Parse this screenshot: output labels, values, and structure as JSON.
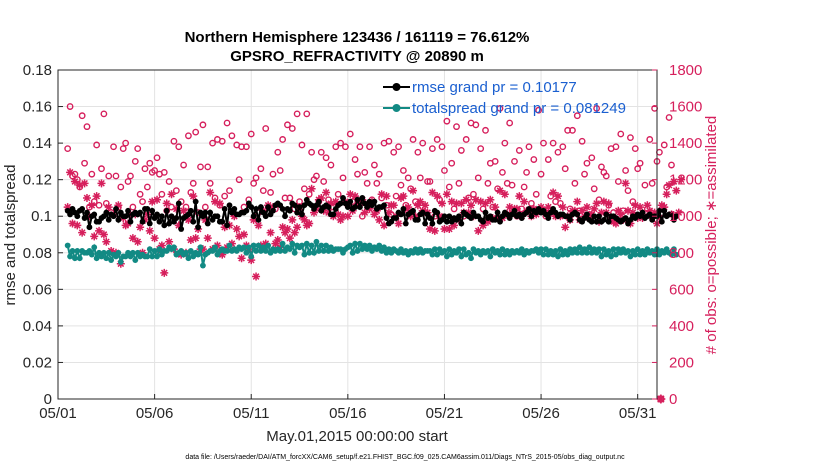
{
  "chart_data": {
    "type": "line",
    "title_line1": "Northern Hemisphere 123436 / 161119 = 76.612%",
    "title_line2": "GPSRO_REFRACTIVITY @ 20890 m",
    "xlabel": "May.01,2015 00:00:00 start",
    "ylabel_left": "rmse and totalspread",
    "ylabel_right": "# of obs: o=possible; ∗=assimilated",
    "footer": "data file: /Users/raeder/DAI/ATM_forcXX/CAM6_setup/f.e21.FHIST_BGC.f09_025.CAM6assim.011/Diags_NTrS_2015-05/obs_diag_output.nc",
    "x_range_days": [
      0,
      31
    ],
    "x_ticks": [
      0,
      5,
      10,
      15,
      20,
      25,
      30
    ],
    "x_tick_labels": [
      "05/01",
      "05/06",
      "05/11",
      "05/16",
      "05/21",
      "05/26",
      "05/31"
    ],
    "ylim_left": [
      0,
      0.18
    ],
    "y_ticks_left": [
      0,
      0.02,
      0.04,
      0.06,
      0.08,
      0.1,
      0.12,
      0.14,
      0.16,
      0.18
    ],
    "y_tick_labels_left": [
      "0",
      "0.02",
      "0.04",
      "0.06",
      "0.08",
      "0.1",
      "0.12",
      "0.14",
      "0.16",
      "0.18"
    ],
    "ylim_right": [
      0,
      1800
    ],
    "y_ticks_right": [
      0,
      200,
      400,
      600,
      800,
      1000,
      1200,
      1400,
      1600,
      1800
    ],
    "y_tick_labels_right": [
      "0",
      "200",
      "400",
      "600",
      "800",
      "1000",
      "1200",
      "1400",
      "1600",
      "1800"
    ],
    "grid": true,
    "legend_position": "top-right",
    "samples_per_day": 8,
    "series": [
      {
        "name": "rmse grand pr = 0.10177",
        "axis": "left",
        "color": "#000000",
        "marker": "dot",
        "values": [
          0.103,
          0.101,
          0.104,
          0.102,
          0.1,
          0.103,
          0.104,
          0.099,
          0.102,
          0.094,
          0.1,
          0.101,
          0.097,
          0.097,
          0.099,
          0.1,
          0.102,
          0.098,
          0.101,
          0.1,
          0.104,
          0.098,
          0.102,
          0.1,
          0.1,
          0.103,
          0.097,
          0.101,
          0.102,
          0.101,
          0.102,
          0.097,
          0.104,
          0.104,
          0.096,
          0.103,
          0.099,
          0.101,
          0.097,
          0.1,
          0.095,
          0.103,
          0.096,
          0.1,
          0.097,
          0.099,
          0.107,
          0.093,
          0.099,
          0.1,
          0.101,
          0.103,
          0.097,
          0.108,
          0.094,
          0.102,
          0.1,
          0.102,
          0.096,
          0.102,
          0.098,
          0.1,
          0.1,
          0.097,
          0.097,
          0.104,
          0.095,
          0.106,
          0.102,
          0.104,
          0.101,
          0.101,
          0.102,
          0.102,
          0.103,
          0.107,
          0.105,
          0.1,
          0.104,
          0.098,
          0.105,
          0.102,
          0.1,
          0.105,
          0.101,
          0.103,
          0.106,
          0.107,
          0.106,
          0.104,
          0.1,
          0.104,
          0.103,
          0.107,
          0.106,
          0.102,
          0.105,
          0.101,
          0.106,
          0.109,
          0.107,
          0.106,
          0.104,
          0.106,
          0.108,
          0.103,
          0.105,
          0.106,
          0.105,
          0.101,
          0.101,
          0.104,
          0.106,
          0.107,
          0.11,
          0.107,
          0.105,
          0.108,
          0.104,
          0.105,
          0.109,
          0.105,
          0.11,
          0.107,
          0.105,
          0.108,
          0.106,
          0.108,
          0.104,
          0.105,
          0.105,
          0.106,
          0.099,
          0.096,
          0.097,
          0.099,
          0.099,
          0.102,
          0.101,
          0.104,
          0.096,
          0.101,
          0.102,
          0.103,
          0.098,
          0.098,
          0.101,
          0.102,
          0.096,
          0.101,
          0.099,
          0.096,
          0.103,
          0.102,
          0.097,
          0.098,
          0.1,
          0.097,
          0.1,
          0.097,
          0.099,
          0.098,
          0.1,
          0.096,
          0.102,
          0.101,
          0.1,
          0.099,
          0.102,
          0.1,
          0.1,
          0.098,
          0.097,
          0.102,
          0.099,
          0.1,
          0.098,
          0.098,
          0.102,
          0.097,
          0.1,
          0.102,
          0.101,
          0.099,
          0.101,
          0.103,
          0.1,
          0.101,
          0.099,
          0.101,
          0.102,
          0.104,
          0.1,
          0.103,
          0.102,
          0.104,
          0.102,
          0.103,
          0.101,
          0.099,
          0.102,
          0.104,
          0.102,
          0.1,
          0.101,
          0.101,
          0.1,
          0.1,
          0.098,
          0.101,
          0.102,
          0.101,
          0.098,
          0.097,
          0.099,
          0.101,
          0.098,
          0.097,
          0.1,
          0.097,
          0.1,
          0.097,
          0.098,
          0.101,
          0.097,
          0.1,
          0.1,
          0.099,
          0.098,
          0.097,
          0.098,
          0.099,
          0.096,
          0.098,
          0.1,
          0.099,
          0.101,
          0.1,
          0.102,
          0.099,
          0.1,
          0.101,
          0.098,
          0.1,
          0.1,
          0.103,
          0.097,
          0.103,
          0.1,
          0.101,
          0.101,
          0.098,
          0.1
        ]
      },
      {
        "name": "totalspread grand pr = 0.081249",
        "axis": "left",
        "color": "#128a84",
        "marker": "dot",
        "values": [
          0.084,
          0.078,
          0.081,
          0.077,
          0.081,
          0.077,
          0.081,
          0.08,
          0.08,
          0.081,
          0.079,
          0.083,
          0.077,
          0.08,
          0.078,
          0.08,
          0.077,
          0.08,
          0.076,
          0.079,
          0.078,
          0.08,
          0.075,
          0.078,
          0.078,
          0.08,
          0.078,
          0.08,
          0.076,
          0.08,
          0.078,
          0.079,
          0.078,
          0.078,
          0.082,
          0.078,
          0.081,
          0.078,
          0.082,
          0.079,
          0.081,
          0.081,
          0.083,
          0.082,
          0.083,
          0.079,
          0.08,
          0.081,
          0.079,
          0.08,
          0.077,
          0.081,
          0.078,
          0.08,
          0.079,
          0.083,
          0.073,
          0.079,
          0.08,
          0.081,
          0.081,
          0.083,
          0.079,
          0.081,
          0.082,
          0.081,
          0.081,
          0.084,
          0.081,
          0.082,
          0.081,
          0.083,
          0.082,
          0.083,
          0.08,
          0.083,
          0.078,
          0.084,
          0.081,
          0.084,
          0.081,
          0.083,
          0.081,
          0.084,
          0.08,
          0.082,
          0.081,
          0.082,
          0.081,
          0.085,
          0.081,
          0.083,
          0.082,
          0.085,
          0.08,
          0.084,
          0.083,
          0.084,
          0.079,
          0.085,
          0.08,
          0.084,
          0.08,
          0.086,
          0.081,
          0.084,
          0.081,
          0.084,
          0.081,
          0.083,
          0.081,
          0.082,
          0.082,
          0.082,
          0.08,
          0.082,
          0.083,
          0.084,
          0.08,
          0.085,
          0.081,
          0.085,
          0.082,
          0.084,
          0.082,
          0.084,
          0.081,
          0.083,
          0.082,
          0.084,
          0.081,
          0.083,
          0.08,
          0.082,
          0.08,
          0.082,
          0.081,
          0.08,
          0.082,
          0.08,
          0.081,
          0.079,
          0.081,
          0.08,
          0.082,
          0.08,
          0.082,
          0.08,
          0.081,
          0.081,
          0.081,
          0.079,
          0.082,
          0.079,
          0.082,
          0.08,
          0.081,
          0.078,
          0.082,
          0.079,
          0.081,
          0.08,
          0.082,
          0.078,
          0.082,
          0.079,
          0.08,
          0.077,
          0.082,
          0.08,
          0.081,
          0.079,
          0.081,
          0.08,
          0.081,
          0.078,
          0.082,
          0.08,
          0.081,
          0.079,
          0.082,
          0.079,
          0.081,
          0.079,
          0.081,
          0.08,
          0.081,
          0.08,
          0.082,
          0.079,
          0.081,
          0.08,
          0.081,
          0.081,
          0.082,
          0.08,
          0.082,
          0.079,
          0.082,
          0.079,
          0.081,
          0.079,
          0.081,
          0.078,
          0.082,
          0.079,
          0.081,
          0.079,
          0.082,
          0.08,
          0.082,
          0.08,
          0.083,
          0.08,
          0.082,
          0.08,
          0.083,
          0.08,
          0.082,
          0.08,
          0.082,
          0.078,
          0.082,
          0.079,
          0.081,
          0.078,
          0.082,
          0.079,
          0.082,
          0.08,
          0.082,
          0.08,
          0.081,
          0.078,
          0.081,
          0.079,
          0.082,
          0.079,
          0.081,
          0.079,
          0.082,
          0.08,
          0.081,
          0.079,
          0.082,
          0.079,
          0.081,
          0.08,
          0.082,
          0.08,
          0.079,
          0.082,
          0.079
        ]
      },
      {
        "name": "possible",
        "axis": "right",
        "color": "#d61f5c",
        "marker": "circle",
        "values": [
          1370,
          1600,
          1220,
          1230,
          1200,
          1160,
          1550,
          1290,
          1490,
          1050,
          1230,
          1080,
          1390,
          1060,
          1260,
          1560,
          1070,
          1220,
          1020,
          1380,
          1220,
          1050,
          1160,
          1370,
          1400,
          1190,
          1220,
          1050,
          1300,
          1370,
          1120,
          1080,
          1260,
          1160,
          1290,
          1240,
          1250,
          1320,
          1230,
          1120,
          1240,
          1030,
          1190,
          1050,
          1410,
          1140,
          1380,
          1080,
          1280,
          1050,
          1440,
          1130,
          1180,
          1460,
          1020,
          1270,
          1500,
          1050,
          1270,
          1180,
          1400,
          1100,
          1420,
          1060,
          1410,
          1110,
          1510,
          1140,
          1440,
          1010,
          1390,
          1200,
          1380,
          1050,
          1380,
          1090,
          1450,
          1180,
          1210,
          1020,
          1260,
          1140,
          1480,
          1050,
          1130,
          1230,
          1040,
          1350,
          1250,
          1420,
          1100,
          1500,
          1100,
          1480,
          1040,
          1560,
          1080,
          1390,
          1150,
          1560,
          1120,
          1350,
          1200,
          1220,
          1080,
          1350,
          1190,
          1320,
          1090,
          1280,
          1050,
          1380,
          1120,
          1400,
          1210,
          1380,
          1060,
          1450,
          1080,
          1310,
          1230,
          1380,
          1000,
          1240,
          1180,
          1380,
          1090,
          1280,
          1180,
          1230,
          1100,
          1400,
          1060,
          1410,
          1010,
          1350,
          1110,
          1380,
          1170,
          1250,
          1060,
          1210,
          1150,
          1420,
          1080,
          1350,
          1210,
          1400,
          1020,
          1190,
          1190,
          1370,
          1000,
          1420,
          1090,
          1380,
          1250,
          1520,
          1160,
          1290,
          1040,
          1490,
          1180,
          1360,
          1000,
          1420,
          1100,
          1510,
          1120,
          1500,
          1210,
          1370,
          1040,
          1470,
          1180,
          1290,
          1050,
          1300,
          1150,
          1590,
          1240,
          1400,
          1180,
          1510,
          1170,
          1300,
          1000,
          1360,
          1040,
          1160,
          1240,
          1380,
          1070,
          1310,
          1120,
          1580,
          1230,
          1400,
          1000,
          1310,
          1110,
          1400,
          1080,
          1350,
          1070,
          1380,
          1260,
          1470,
          1040,
          1470,
          1180,
          1550,
          1030,
          1410,
          1230,
          1290,
          1010,
          1320,
          1150,
          1590,
          1090,
          1270,
          1240,
          1220,
          1060,
          1370,
          1020,
          1380,
          1190,
          1450,
          1030,
          1250,
          1140,
          1430,
          1080,
          1370,
          1260,
          1290,
          1000,
          1170,
          1040,
          1420,
          1180,
          1590,
          1300,
          1350,
          1010,
          1390,
          1160,
          1540,
          1280
        ]
      },
      {
        "name": "assimilated",
        "axis": "right",
        "color": "#d61f5c",
        "marker": "star",
        "values": [
          1050,
          1240,
          960,
          1190,
          950,
          1170,
          910,
          1180,
          1100,
          1000,
          1060,
          890,
          1110,
          920,
          1180,
          900,
          860,
          1050,
          810,
          1010,
          800,
          1060,
          740,
          990,
          950,
          960,
          1010,
          880,
          1010,
          860,
          940,
          800,
          980,
          1010,
          920,
          1080,
          880,
          1090,
          820,
          840,
          690,
          1070,
          860,
          1120,
          820,
          1040,
          950,
          790,
          1030,
          800,
          980,
          870,
          1110,
          880,
          930,
          820,
          820,
          980,
          880,
          1130,
          820,
          1080,
          840,
          1070,
          790,
          940,
          830,
          950,
          850,
          1000,
          930,
          890,
          770,
          900,
          840,
          820,
          760,
          980,
          670,
          950,
          840,
          1030,
          850,
          1060,
          910,
          1050,
          850,
          870,
          830,
          940,
          910,
          930,
          880,
          980,
          910,
          940,
          1050,
          1000,
          980,
          950,
          960,
          1150,
          1020,
          1040,
          1090,
          1100,
          1030,
          1130,
          1020,
          1070,
          1000,
          1080,
          1010,
          980,
          1000,
          1080,
          1000,
          1120,
          1030,
          1110,
          1070,
          1070,
          1090,
          1020,
          1060,
          1040,
          1080,
          1010,
          1030,
          980,
          1120,
          950,
          1110,
          1020,
          1060,
          1060,
          1000,
          960,
          1100,
          1110,
          1040,
          1050,
          1000,
          1140,
          1000,
          1060,
          1080,
          1030,
          1060,
          1020,
          930,
          1130,
          920,
          1110,
          1000,
          1070,
          930,
          1120,
          930,
          1080,
          950,
          1070,
          980,
          1070,
          1020,
          1090,
          1020,
          1060,
          1000,
          1090,
          920,
          1080,
          950,
          1070,
          970,
          1090,
          990,
          1050,
          990,
          1140,
          990,
          1120,
          1010,
          1050,
          1020,
          1040,
          1040,
          1110,
          1000,
          1080,
          1030,
          1030,
          1000,
          1040,
          1010,
          1030,
          1050,
          1030,
          1020,
          1050,
          1020,
          1130,
          1000,
          1110,
          1000,
          1050,
          940,
          1000,
          980,
          1030,
          1030,
          1080,
          980,
          1030,
          1000,
          1050,
          990,
          1010,
          1040,
          1070,
          970,
          1020,
          1080,
          1020,
          1070,
          990,
          970,
          960,
          1030,
          1010,
          980,
          1180,
          1030,
          960,
          1020,
          1060,
          990,
          1050,
          990,
          1000,
          1060,
          1030,
          1000,
          1020,
          960,
          990,
          1060,
          1050,
          1120,
          1170,
          1010,
          1190,
          1140,
          1020,
          1200
        ]
      }
    ],
    "end_marker": {
      "x_day": 31.2,
      "value": 0,
      "axis": "right"
    }
  }
}
